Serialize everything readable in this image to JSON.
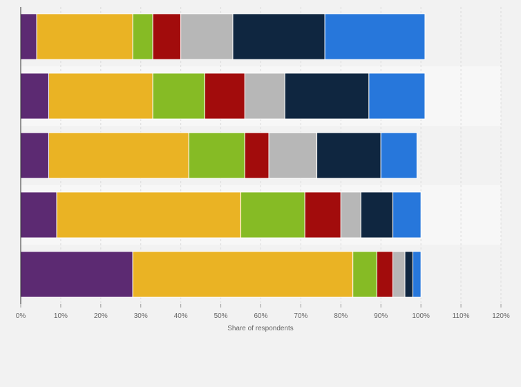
{
  "chart_data": {
    "type": "bar",
    "orientation": "horizontal",
    "stacked": true,
    "categories": [
      "",
      "",
      "",
      "",
      ""
    ],
    "x_ticks": [
      "0%",
      "10%",
      "20%",
      "30%",
      "40%",
      "50%",
      "60%",
      "70%",
      "80%",
      "90%",
      "100%",
      "110%",
      "120%"
    ],
    "xlabel": "Share of respondents",
    "ylabel": "",
    "xlim": [
      0,
      120
    ],
    "grid": true,
    "legend": "none",
    "series": [
      {
        "color": "#5c2a72",
        "values": [
          4,
          7,
          7,
          9,
          28
        ]
      },
      {
        "color": "#eab324",
        "values": [
          24,
          26,
          35,
          46,
          55
        ]
      },
      {
        "color": "#86bb25",
        "values": [
          5,
          13,
          14,
          16,
          6
        ]
      },
      {
        "color": "#a20c0c",
        "values": [
          7,
          10,
          6,
          9,
          4
        ]
      },
      {
        "color": "#b7b7b7",
        "values": [
          13,
          10,
          12,
          5,
          3
        ]
      },
      {
        "color": "#0f2640",
        "values": [
          23,
          21,
          16,
          8,
          2
        ]
      },
      {
        "color": "#2777db",
        "values": [
          25,
          14,
          9,
          7,
          2
        ]
      }
    ],
    "band_colors": [
      "#f2f2f2",
      "#f7f7f7"
    ]
  }
}
